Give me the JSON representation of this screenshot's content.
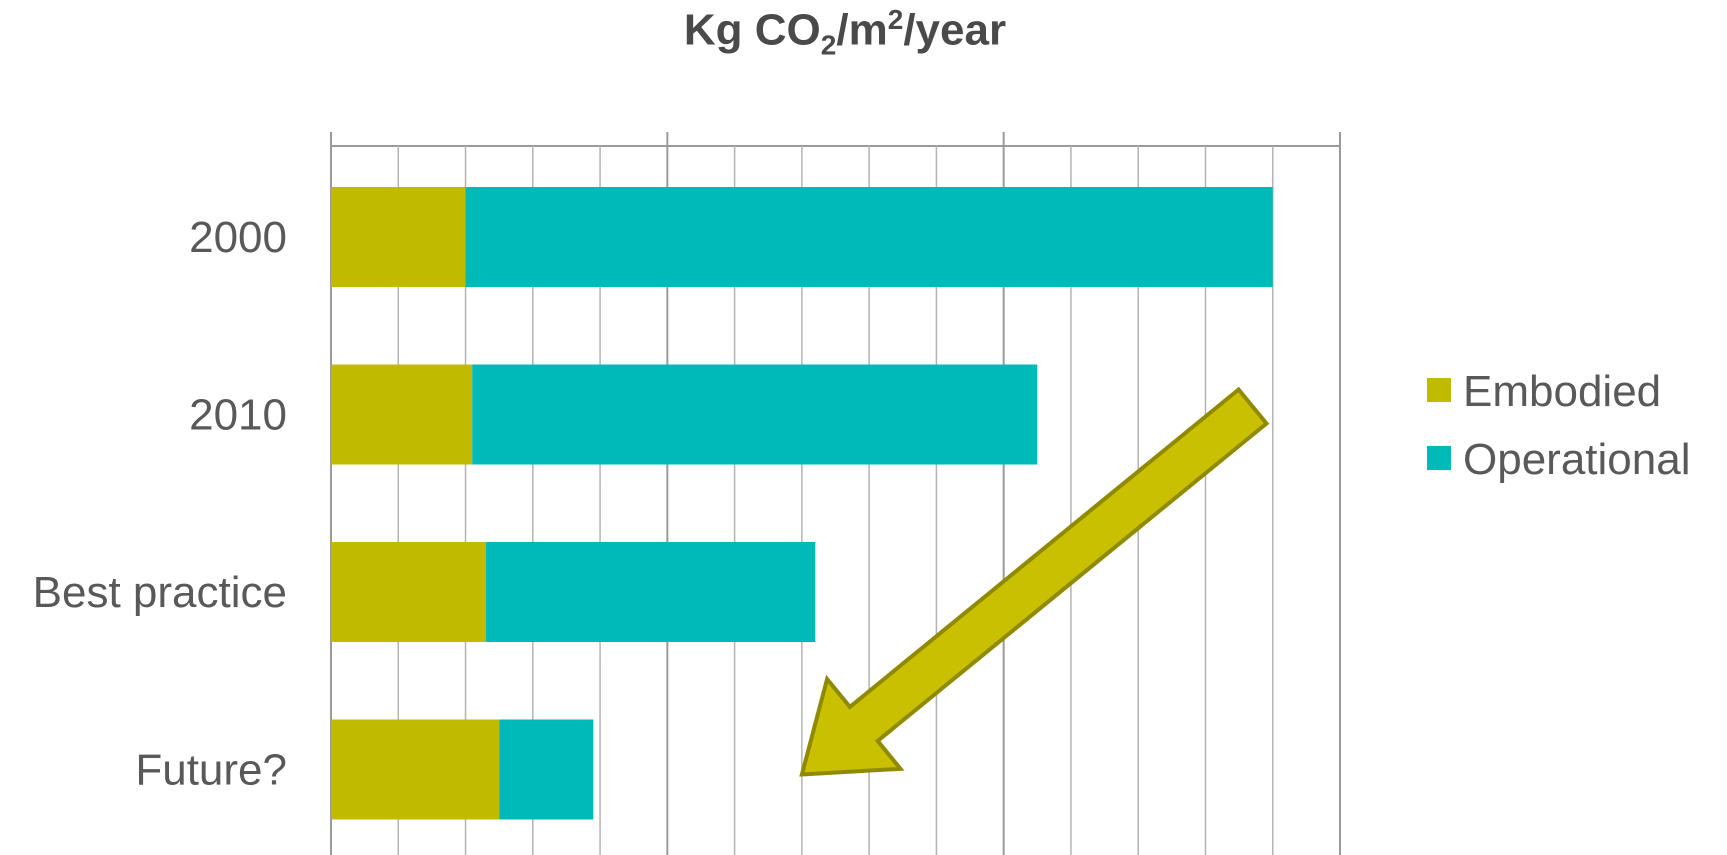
{
  "chart_data": {
    "type": "bar",
    "orientation": "horizontal",
    "stacked": true,
    "title": {
      "main": "Kg CO",
      "sub": "2",
      "mid": "/m",
      "sup": "2",
      "end": "/year"
    },
    "categories": [
      "2000",
      "2010",
      "Best practice",
      "Future?"
    ],
    "series": [
      {
        "name": "Embodied",
        "color": "#c0bb00",
        "values": [
          2,
          2.1,
          2.3,
          2.5
        ]
      },
      {
        "name": "Operational",
        "color": "#00b9b9",
        "values": [
          12,
          8.4,
          4.9,
          1.4
        ]
      }
    ],
    "xlim": [
      0,
      15
    ],
    "major_gridlines": [
      0,
      5,
      10,
      15
    ],
    "minor_gridlines": [
      1,
      2,
      3,
      4,
      6,
      7,
      8,
      9,
      11,
      12,
      13,
      14
    ],
    "grid": true,
    "xaxis_tick_labels_shown": false,
    "legend": {
      "position": "right"
    },
    "annotation": {
      "type": "arrow",
      "color": "#c8c000",
      "from": {
        "x": 13.7,
        "category": "2010"
      },
      "to": {
        "x": 7,
        "category": "Future?"
      }
    }
  }
}
